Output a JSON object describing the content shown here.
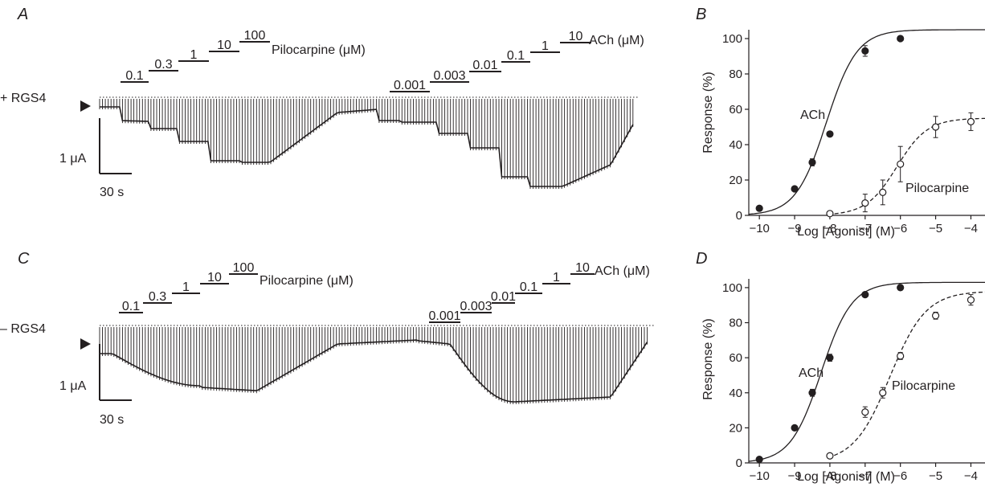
{
  "panels": {
    "A": {
      "letter": "A",
      "condition": "+ RGS4",
      "pilo_label": "Pilocarpine (μM)",
      "ach_label": "ACh (μM)",
      "pilo_conc": [
        "0.1",
        "0.3",
        "1",
        "10",
        "100"
      ],
      "ach_conc": [
        "0.001",
        "0.003",
        "0.01",
        "0.1",
        "1",
        "10"
      ]
    },
    "C": {
      "letter": "C",
      "condition": "– RGS4",
      "pilo_label": "Pilocarpine (μM)",
      "ach_label": "ACh (μM)",
      "pilo_conc": [
        "0.1",
        "0.3",
        "1",
        "10",
        "100"
      ],
      "ach_conc": [
        "0.001",
        "0.003",
        "0.01",
        "0.1",
        "1",
        "10"
      ]
    },
    "B": {
      "letter": "B"
    },
    "D": {
      "letter": "D"
    }
  },
  "scale_bar": {
    "current": "1 μA",
    "time": "30 s"
  },
  "chart_data": [
    {
      "type": "scatter",
      "panel": "B",
      "xlabel": "Log [Agonist] (M)",
      "ylabel": "Response (%)",
      "xlim": [
        -10.3,
        -3.6
      ],
      "ylim": [
        0,
        105
      ],
      "xticks": [
        -10,
        -9,
        -8,
        -7,
        -6,
        -5,
        -4
      ],
      "xtick_labels": [
        "−10",
        "−9",
        "−8",
        "−7",
        "−6",
        "−5",
        "−4"
      ],
      "yticks": [
        0,
        20,
        40,
        60,
        80,
        100
      ],
      "ytick_labels": [
        "0",
        "20",
        "40",
        "60",
        "80",
        "100"
      ],
      "series": [
        {
          "name": "ACh",
          "marker": "filled",
          "line": "solid",
          "x": [
            -10,
            -9,
            -8.5,
            -8,
            -7,
            -6
          ],
          "y": [
            4,
            15,
            30,
            46,
            93,
            100
          ],
          "err": [
            0,
            1,
            2,
            1,
            3,
            1
          ],
          "fit": {
            "bottom": 0,
            "top": 105,
            "logEC50": -8.1,
            "hill": 1.0
          }
        },
        {
          "name": "Pilocarpine",
          "marker": "open",
          "line": "dashed",
          "x": [
            -8,
            -7,
            -6.5,
            -6,
            -5,
            -4
          ],
          "y": [
            1,
            7,
            13,
            29,
            50,
            53
          ],
          "err": [
            0,
            5,
            7,
            10,
            6,
            5
          ],
          "fit": {
            "bottom": 0,
            "top": 55,
            "logEC50": -6.1,
            "hill": 1.0
          }
        }
      ]
    },
    {
      "type": "scatter",
      "panel": "D",
      "xlabel": "Log [Agonist] (M)",
      "ylabel": "Response (%)",
      "xlim": [
        -10.3,
        -3.6
      ],
      "ylim": [
        0,
        105
      ],
      "xticks": [
        -10,
        -9,
        -8,
        -7,
        -6,
        -5,
        -4
      ],
      "xtick_labels": [
        "−10",
        "−9",
        "−8",
        "−7",
        "−6",
        "−5",
        "−4"
      ],
      "yticks": [
        0,
        20,
        40,
        60,
        80,
        100
      ],
      "ytick_labels": [
        "0",
        "20",
        "40",
        "60",
        "80",
        "100"
      ],
      "series": [
        {
          "name": "ACh",
          "marker": "filled",
          "line": "solid",
          "x": [
            -10,
            -9,
            -8.5,
            -8,
            -7,
            -6
          ],
          "y": [
            2,
            20,
            40,
            60,
            96,
            100
          ],
          "err": [
            0,
            1,
            2,
            2,
            1,
            1
          ],
          "fit": {
            "bottom": 0,
            "top": 103,
            "logEC50": -8.25,
            "hill": 1.0
          }
        },
        {
          "name": "Pilocarpine",
          "marker": "open",
          "line": "dashed",
          "x": [
            -8,
            -7,
            -6.5,
            -6,
            -5,
            -4
          ],
          "y": [
            4,
            29,
            40,
            61,
            84,
            93
          ],
          "err": [
            0,
            3,
            3,
            2,
            2,
            3
          ],
          "fit": {
            "bottom": 0,
            "top": 98,
            "logEC50": -6.3,
            "hill": 0.85
          }
        }
      ]
    }
  ]
}
